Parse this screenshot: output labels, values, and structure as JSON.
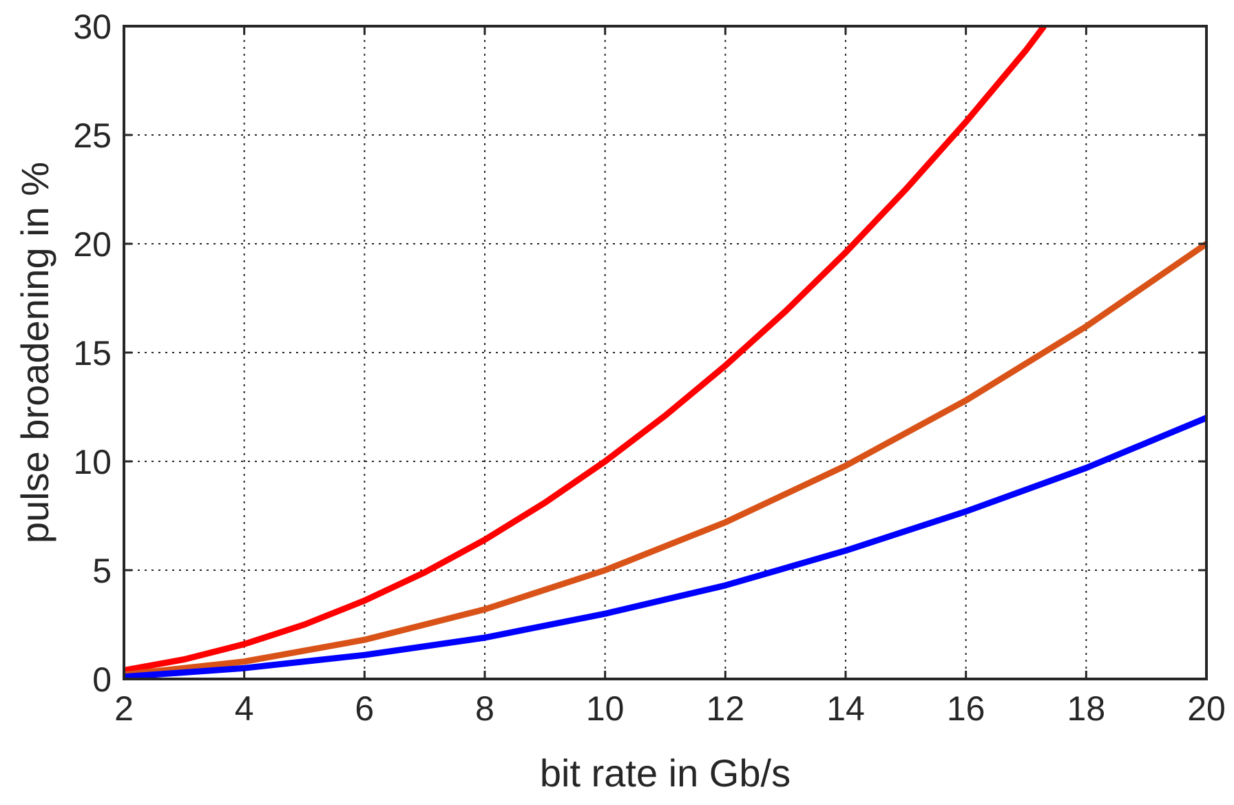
{
  "chart_data": {
    "type": "line",
    "title": "",
    "xlabel": "bit rate in Gb/s",
    "ylabel": "pulse broadening in %",
    "xlim": [
      2,
      20
    ],
    "ylim": [
      0,
      30
    ],
    "xticks": [
      2,
      4,
      6,
      8,
      10,
      12,
      14,
      16,
      18,
      20
    ],
    "yticks": [
      0,
      5,
      10,
      15,
      20,
      25,
      30
    ],
    "xtick_labels": [
      "2",
      "4",
      "6",
      "8",
      "10",
      "12",
      "14",
      "16",
      "18",
      "20"
    ],
    "ytick_labels": [
      "0",
      "5",
      "10",
      "15",
      "20",
      "25",
      "30"
    ],
    "grid": true,
    "legend": "none",
    "series": [
      {
        "color": "#ff0000",
        "x": [
          2,
          3,
          4,
          5,
          6,
          7,
          8,
          9,
          10,
          11,
          12,
          13,
          14,
          15,
          16,
          17,
          17.3
        ],
        "y": [
          0.4,
          0.9,
          1.6,
          2.5,
          3.6,
          4.9,
          6.4,
          8.1,
          10.0,
          12.1,
          14.4,
          16.9,
          19.6,
          22.5,
          25.6,
          28.9,
          30.0
        ]
      },
      {
        "color": "#d95319",
        "x": [
          2,
          4,
          6,
          8,
          10,
          12,
          14,
          16,
          18,
          20
        ],
        "y": [
          0.2,
          0.8,
          1.8,
          3.2,
          5.0,
          7.2,
          9.8,
          12.8,
          16.2,
          20.0
        ]
      },
      {
        "color": "#0000ff",
        "x": [
          2,
          4,
          6,
          8,
          10,
          12,
          14,
          16,
          18,
          20
        ],
        "y": [
          0.1,
          0.5,
          1.1,
          1.9,
          3.0,
          4.3,
          5.9,
          7.7,
          9.7,
          12.0
        ]
      }
    ]
  }
}
